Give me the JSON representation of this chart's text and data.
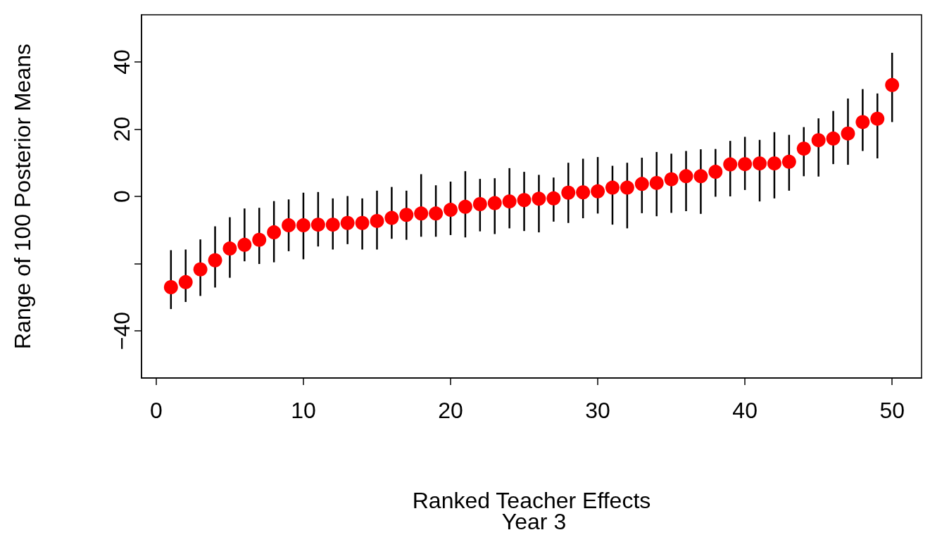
{
  "chart_data": {
    "type": "scatter",
    "xlabel": "Ranked Teacher Effects",
    "subtitle": "Year 3",
    "ylabel": "Range of 100 Posterior Means",
    "x": [
      1,
      2,
      3,
      4,
      5,
      6,
      7,
      8,
      9,
      10,
      11,
      12,
      13,
      14,
      15,
      16,
      17,
      18,
      19,
      20,
      21,
      22,
      23,
      24,
      25,
      26,
      27,
      28,
      29,
      30,
      31,
      32,
      33,
      34,
      35,
      36,
      37,
      38,
      39,
      40,
      41,
      42,
      43,
      44,
      45,
      46,
      47,
      48,
      49,
      50
    ],
    "series": [
      {
        "color": "#ff0000",
        "values": [
          -27.0,
          -25.5,
          -21.7,
          -19.0,
          -15.5,
          -14.4,
          -12.9,
          -10.7,
          -8.6,
          -8.6,
          -8.4,
          -8.4,
          -7.9,
          -7.9,
          -7.3,
          -6.4,
          -5.5,
          -5.1,
          -5.1,
          -4.0,
          -3.1,
          -2.3,
          -2.0,
          -1.5,
          -1.1,
          -0.7,
          -0.6,
          1.1,
          1.2,
          1.5,
          2.6,
          2.6,
          3.7,
          4.0,
          5.1,
          6.0,
          6.0,
          7.3,
          9.5,
          9.6,
          9.8,
          9.8,
          10.3,
          14.2,
          16.7,
          17.2,
          18.7,
          22.1,
          23.1,
          33.1
        ],
        "errors": [
          [
            -33.5,
            -16.0
          ],
          [
            -31.4,
            -15.8
          ],
          [
            -29.6,
            -12.8
          ],
          [
            -27.1,
            -8.9
          ],
          [
            -24.2,
            -6.2
          ],
          [
            -19.3,
            -3.6
          ],
          [
            -20.1,
            -3.4
          ],
          [
            -19.6,
            -1.4
          ],
          [
            -16.3,
            -0.9
          ],
          [
            -18.7,
            1.1
          ],
          [
            -14.9,
            1.3
          ],
          [
            -15.8,
            -0.6
          ],
          [
            -14.2,
            0.1
          ],
          [
            -15.8,
            -0.6
          ],
          [
            -15.8,
            1.7
          ],
          [
            -12.6,
            2.8
          ],
          [
            -12.9,
            1.7
          ],
          [
            -12.0,
            6.6
          ],
          [
            -12.0,
            3.3
          ],
          [
            -11.5,
            4.4
          ],
          [
            -12.2,
            7.5
          ],
          [
            -10.4,
            5.2
          ],
          [
            -11.2,
            5.4
          ],
          [
            -9.5,
            8.4
          ],
          [
            -10.3,
            7.3
          ],
          [
            -10.7,
            6.4
          ],
          [
            -7.5,
            5.6
          ],
          [
            -7.9,
            10.0
          ],
          [
            -6.5,
            11.2
          ],
          [
            -5.1,
            11.7
          ],
          [
            -8.4,
            9.1
          ],
          [
            -9.5,
            10.0
          ],
          [
            -5.0,
            11.5
          ],
          [
            -5.9,
            13.2
          ],
          [
            -4.9,
            12.7
          ],
          [
            -4.4,
            13.5
          ],
          [
            -5.2,
            14.0
          ],
          [
            -0.1,
            14.1
          ],
          [
            0.0,
            16.5
          ],
          [
            1.9,
            17.7
          ],
          [
            -1.5,
            16.8
          ],
          [
            -0.6,
            19.1
          ],
          [
            1.7,
            18.3
          ],
          [
            6.0,
            20.6
          ],
          [
            5.9,
            23.2
          ],
          [
            9.6,
            25.4
          ],
          [
            9.4,
            29.1
          ],
          [
            13.5,
            31.9
          ],
          [
            11.3,
            30.6
          ],
          [
            22.1,
            42.7
          ]
        ]
      }
    ],
    "xlim": [
      -1,
      52
    ],
    "xticks": [
      0,
      10,
      20,
      30,
      40,
      50
    ],
    "ylim": [
      -54,
      54
    ],
    "yticks": [
      -40,
      {
        "value": -20,
        "label": null
      },
      0,
      20,
      40
    ],
    "grid": false,
    "marker": "circle"
  }
}
